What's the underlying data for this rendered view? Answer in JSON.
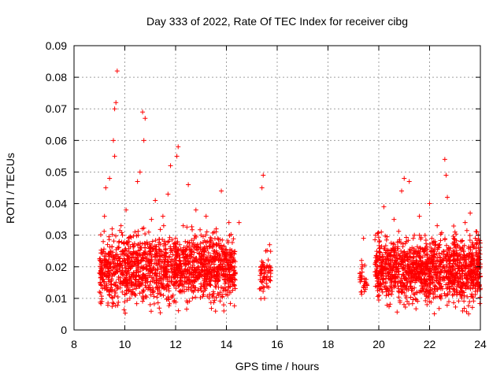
{
  "chart_data": {
    "type": "scatter",
    "title": "Day 333 of 2022, Rate Of TEC Index for receiver cibg",
    "xlabel": "GPS time / hours",
    "ylabel": "ROTI / TECUs",
    "xlim": [
      8,
      24
    ],
    "ylim": [
      0,
      0.09
    ],
    "xticks": [
      8,
      10,
      12,
      14,
      16,
      18,
      20,
      22,
      24
    ],
    "xtick_labels": [
      "8",
      "10",
      "12",
      "14",
      "16",
      "18",
      "20",
      "22",
      "24"
    ],
    "yticks": [
      0,
      0.01,
      0.02,
      0.03,
      0.04,
      0.05,
      0.06,
      0.07,
      0.08,
      0.09
    ],
    "ytick_labels": [
      "0",
      "0.01",
      "0.02",
      "0.03",
      "0.04",
      "0.05",
      "0.06",
      "0.07",
      "0.08",
      "0.09"
    ],
    "grid": true,
    "marker": "+",
    "color": "#ff0000",
    "series": [
      {
        "name": "ROTI",
        "points": [
          [
            9.0,
            0.012
          ],
          [
            9.0,
            0.018
          ],
          [
            9.05,
            0.022
          ],
          [
            9.1,
            0.009
          ],
          [
            9.1,
            0.016
          ],
          [
            9.15,
            0.028
          ],
          [
            9.2,
            0.036
          ],
          [
            9.2,
            0.014
          ],
          [
            9.25,
            0.045
          ],
          [
            9.3,
            0.02
          ],
          [
            9.35,
            0.024
          ],
          [
            9.4,
            0.011
          ],
          [
            9.4,
            0.048
          ],
          [
            9.5,
            0.032
          ],
          [
            9.5,
            0.017
          ],
          [
            9.55,
            0.06
          ],
          [
            9.6,
            0.07
          ],
          [
            9.6,
            0.055
          ],
          [
            9.65,
            0.072
          ],
          [
            9.7,
            0.082
          ],
          [
            9.7,
            0.013
          ],
          [
            9.75,
            0.026
          ],
          [
            9.8,
            0.019
          ],
          [
            9.85,
            0.033
          ],
          [
            9.9,
            0.012
          ],
          [
            10.0,
            0.022
          ],
          [
            10.05,
            0.038
          ],
          [
            10.1,
            0.015
          ],
          [
            10.15,
            0.029
          ],
          [
            10.2,
            0.01
          ],
          [
            10.3,
            0.024
          ],
          [
            10.35,
            0.018
          ],
          [
            10.4,
            0.031
          ],
          [
            10.5,
            0.047
          ],
          [
            10.55,
            0.021
          ],
          [
            10.6,
            0.05
          ],
          [
            10.7,
            0.069
          ],
          [
            10.75,
            0.06
          ],
          [
            10.8,
            0.067
          ],
          [
            10.85,
            0.016
          ],
          [
            10.9,
            0.027
          ],
          [
            11.0,
            0.008
          ],
          [
            11.05,
            0.035
          ],
          [
            11.1,
            0.019
          ],
          [
            11.2,
            0.041
          ],
          [
            11.3,
            0.013
          ],
          [
            11.4,
            0.025
          ],
          [
            11.5,
            0.036
          ],
          [
            11.6,
            0.017
          ],
          [
            11.7,
            0.043
          ],
          [
            11.8,
            0.052
          ],
          [
            11.9,
            0.011
          ],
          [
            12.0,
            0.029
          ],
          [
            12.05,
            0.055
          ],
          [
            12.1,
            0.058
          ],
          [
            12.2,
            0.021
          ],
          [
            12.3,
            0.033
          ],
          [
            12.4,
            0.015
          ],
          [
            12.5,
            0.046
          ],
          [
            12.6,
            0.024
          ],
          [
            12.7,
            0.012
          ],
          [
            12.8,
            0.038
          ],
          [
            12.9,
            0.02
          ],
          [
            13.0,
            0.03
          ],
          [
            13.1,
            0.014
          ],
          [
            13.2,
            0.036
          ],
          [
            13.3,
            0.022
          ],
          [
            13.4,
            0.018
          ],
          [
            13.5,
            0.027
          ],
          [
            13.6,
            0.032
          ],
          [
            13.7,
            0.011
          ],
          [
            13.8,
            0.044
          ],
          [
            13.85,
            0.024
          ],
          [
            13.9,
            0.006
          ],
          [
            14.0,
            0.019
          ],
          [
            14.1,
            0.034
          ],
          [
            14.2,
            0.016
          ],
          [
            14.3,
            0.022
          ],
          [
            14.5,
            0.034
          ],
          [
            15.3,
            0.013
          ],
          [
            15.35,
            0.02
          ],
          [
            15.4,
            0.045
          ],
          [
            15.45,
            0.049
          ],
          [
            15.5,
            0.01
          ],
          [
            15.55,
            0.025
          ],
          [
            15.6,
            0.017
          ],
          [
            15.7,
            0.027
          ],
          [
            19.3,
            0.012
          ],
          [
            19.35,
            0.02
          ],
          [
            19.4,
            0.029
          ],
          [
            19.5,
            0.016
          ],
          [
            19.9,
            0.022
          ],
          [
            20.0,
            0.011
          ],
          [
            20.05,
            0.026
          ],
          [
            20.1,
            0.031
          ],
          [
            20.2,
            0.039
          ],
          [
            20.3,
            0.017
          ],
          [
            20.4,
            0.024
          ],
          [
            20.5,
            0.013
          ],
          [
            20.6,
            0.035
          ],
          [
            20.7,
            0.02
          ],
          [
            20.8,
            0.028
          ],
          [
            20.9,
            0.044
          ],
          [
            21.0,
            0.048
          ],
          [
            21.1,
            0.015
          ],
          [
            21.2,
            0.047
          ],
          [
            21.3,
            0.022
          ],
          [
            21.4,
            0.03
          ],
          [
            21.5,
            0.012
          ],
          [
            21.6,
            0.036
          ],
          [
            21.7,
            0.019
          ],
          [
            21.8,
            0.025
          ],
          [
            21.9,
            0.008
          ],
          [
            22.0,
            0.04
          ],
          [
            22.1,
            0.021
          ],
          [
            22.2,
            0.014
          ],
          [
            22.3,
            0.033
          ],
          [
            22.4,
            0.027
          ],
          [
            22.5,
            0.016
          ],
          [
            22.6,
            0.054
          ],
          [
            22.65,
            0.049
          ],
          [
            22.7,
            0.042
          ],
          [
            22.8,
            0.023
          ],
          [
            22.9,
            0.011
          ],
          [
            23.0,
            0.031
          ],
          [
            23.1,
            0.018
          ],
          [
            23.2,
            0.026
          ],
          [
            23.3,
            0.006
          ],
          [
            23.4,
            0.034
          ],
          [
            23.5,
            0.02
          ],
          [
            23.6,
            0.037
          ],
          [
            23.7,
            0.014
          ],
          [
            23.8,
            0.029
          ],
          [
            23.9,
            0.022
          ],
          [
            24.0,
            0.017
          ]
        ],
        "bands": [
          {
            "x_start": 9.0,
            "x_end": 14.35,
            "y_low": 0.007,
            "y_high": 0.032,
            "count": 1500
          },
          {
            "x_start": 15.3,
            "x_end": 15.75,
            "y_low": 0.01,
            "y_high": 0.026,
            "count": 60
          },
          {
            "x_start": 19.25,
            "x_end": 19.55,
            "y_low": 0.011,
            "y_high": 0.022,
            "count": 30
          },
          {
            "x_start": 19.85,
            "x_end": 24.0,
            "y_low": 0.007,
            "y_high": 0.031,
            "count": 1300
          }
        ]
      }
    ]
  }
}
